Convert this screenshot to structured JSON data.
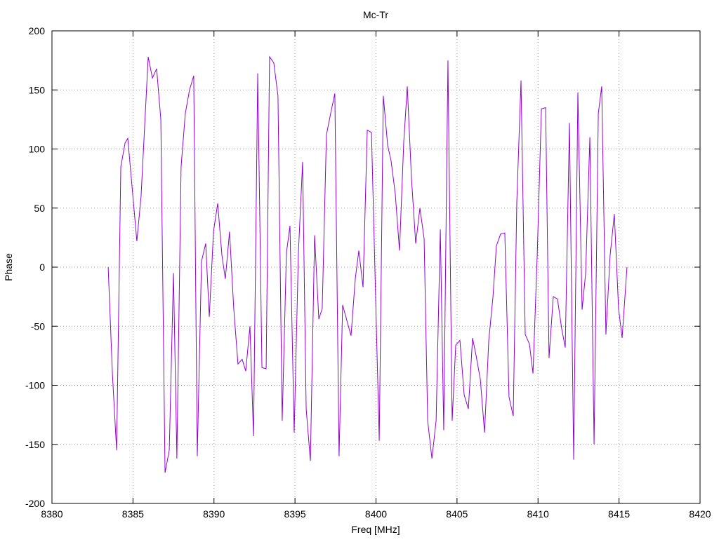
{
  "chart_data": {
    "type": "line",
    "title": "Mc-Tr",
    "x_label": "Freq [MHz]",
    "y_label": "Phase",
    "x": [
      8383.47,
      8383.73,
      8383.99,
      8384.25,
      8384.51,
      8384.68,
      8385.24,
      8385.5,
      8385.94,
      8386.2,
      8386.46,
      8386.72,
      8386.98,
      8387.24,
      8387.5,
      8387.71,
      8387.97,
      8388.23,
      8388.49,
      8388.75,
      8388.97,
      8389.23,
      8389.49,
      8389.71,
      8389.97,
      8390.23,
      8390.49,
      8390.7,
      8390.96,
      8391.22,
      8391.48,
      8391.74,
      8391.96,
      8392.22,
      8392.44,
      8392.7,
      8392.96,
      8393.22,
      8393.43,
      8393.69,
      8393.95,
      8394.21,
      8394.47,
      8394.69,
      8394.95,
      8395.21,
      8395.47,
      8395.69,
      8395.95,
      8396.21,
      8396.47,
      8396.68,
      8396.94,
      8397.2,
      8397.46,
      8397.72,
      8397.94,
      8398.2,
      8398.46,
      8398.72,
      8398.94,
      8399.2,
      8399.46,
      8399.72,
      8400.2,
      8400.45,
      8400.72,
      8400.93,
      8401.19,
      8401.45,
      8401.71,
      8401.93,
      8402.19,
      8402.45,
      8402.71,
      8402.97,
      8403.19,
      8403.45,
      8403.71,
      8403.97,
      8404.18,
      8404.44,
      8404.7,
      8404.92,
      8405.18,
      8405.44,
      8405.7,
      8405.96,
      8406.18,
      8406.44,
      8406.7,
      8406.96,
      8407.22,
      8407.43,
      8407.69,
      8407.95,
      8408.21,
      8408.47,
      8408.69,
      8408.95,
      8409.21,
      8409.47,
      8409.69,
      8409.95,
      8410.21,
      8410.47,
      8410.68,
      8410.94,
      8411.2,
      8411.46,
      8411.68,
      8411.94,
      8412.2,
      8412.46,
      8412.72,
      8412.94,
      8413.2,
      8413.46,
      8413.72,
      8413.93,
      8414.19,
      8414.45,
      8414.71,
      8414.97,
      8415.19,
      8415.49
    ],
    "series": [
      {
        "color": "#9400d3",
        "values": [
          0,
          -90,
          -155,
          85,
          105,
          109,
          22,
          60,
          178,
          160,
          168,
          125,
          -174,
          -155,
          -5,
          -162,
          85,
          130,
          150,
          162,
          -160,
          5,
          20,
          -42,
          30,
          54,
          10,
          -10,
          30,
          -35,
          -82,
          -78,
          -88,
          -50,
          -143,
          164,
          -85,
          -86,
          178,
          173,
          145,
          -130,
          12,
          35,
          -140,
          12,
          89,
          -120,
          -164,
          27,
          -44,
          -35,
          112,
          130,
          147,
          -160,
          -32,
          -45,
          -58,
          -10,
          14,
          -17,
          116,
          114,
          -147,
          145,
          103,
          90,
          62,
          14,
          105,
          153,
          75,
          20,
          50,
          24,
          -130,
          -162,
          -130,
          32,
          -138,
          175,
          -130,
          -66,
          -62,
          -108,
          -120,
          -60,
          -75,
          -95,
          -140,
          -62,
          -25,
          18,
          28,
          29,
          -110,
          -126,
          55,
          158,
          -57,
          -65,
          -90,
          10,
          134,
          135,
          -77,
          -25,
          -27,
          -52,
          -68,
          122,
          -163,
          148,
          -36,
          -5,
          110,
          -150,
          130,
          153,
          -57,
          10,
          45,
          -35,
          -60,
          0
        ]
      }
    ],
    "xlim": [
      8380,
      8420
    ],
    "xticks": [
      8380,
      8385,
      8390,
      8395,
      8400,
      8405,
      8410,
      8415,
      8420
    ],
    "ylim": [
      -200,
      200
    ],
    "yticks": [
      -200,
      -150,
      -100,
      -50,
      0,
      50,
      100,
      150,
      200
    ],
    "grid": true
  }
}
